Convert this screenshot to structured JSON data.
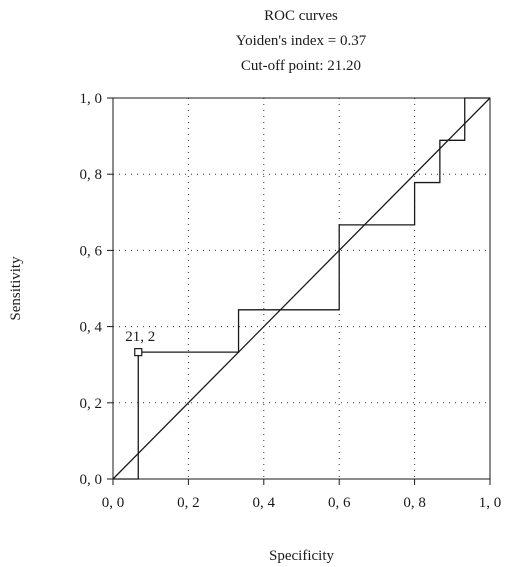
{
  "chart_data": {
    "type": "line",
    "title": [
      "ROC curves",
      "Yoiden's index = 0.37",
      "Cut-off point: 21.20"
    ],
    "xlabel": "Specificity",
    "ylabel": "Sensitivity",
    "xlim": [
      0,
      1
    ],
    "ylim": [
      0,
      1
    ],
    "xticks": [
      0,
      0.2,
      0.4,
      0.6,
      0.8,
      1.0
    ],
    "yticks": [
      0,
      0.2,
      0.4,
      0.6,
      0.8,
      1.0
    ],
    "xtick_labels": [
      "0, 0",
      "0, 2",
      "0, 4",
      "0, 6",
      "0, 8",
      "1, 0"
    ],
    "ytick_labels": [
      "0, 0",
      "0, 2",
      "0, 4",
      "0, 6",
      "0, 8",
      "1, 0"
    ],
    "grid": true,
    "series": [
      {
        "style": "step",
        "x": [
          0,
          0.067,
          0.067,
          0.333,
          0.333,
          0.6,
          0.6,
          0.8,
          0.8,
          0.867,
          0.867,
          0.933,
          0.933,
          1.0
        ],
        "y": [
          0,
          0,
          0.333,
          0.333,
          0.444,
          0.444,
          0.667,
          0.667,
          0.778,
          0.778,
          0.889,
          0.889,
          1.0,
          1.0
        ]
      },
      {
        "style": "diagonal",
        "x": [
          0,
          1
        ],
        "y": [
          0,
          1
        ]
      }
    ],
    "annotations": [
      {
        "label": "21, 2",
        "x": 0.067,
        "y": 0.333,
        "marker": "square"
      }
    ]
  },
  "colors": {
    "line": "#1a1a1a",
    "grid": "#333333",
    "background": "#ffffff"
  }
}
